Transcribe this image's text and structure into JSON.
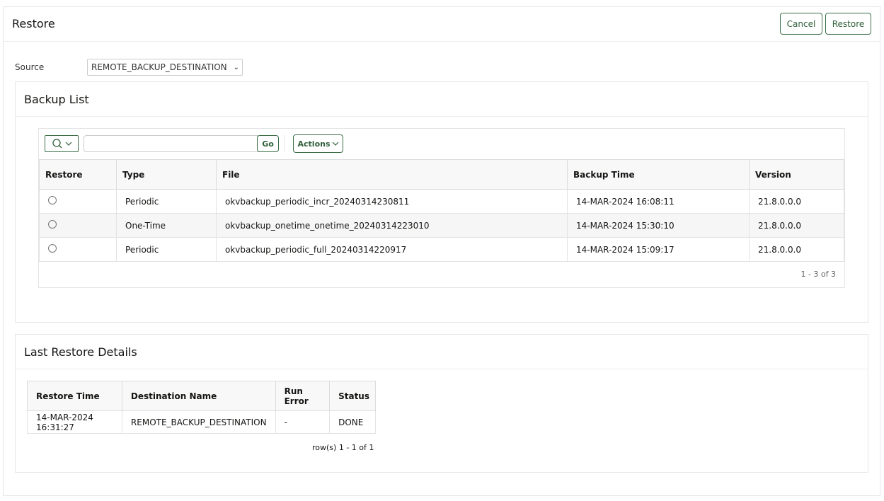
{
  "header": {
    "title": "Restore",
    "cancel_label": "Cancel",
    "restore_label": "Restore"
  },
  "source": {
    "label": "Source",
    "value": "REMOTE_BACKUP_DESTINATION"
  },
  "backup_list": {
    "title": "Backup List",
    "search_value": "",
    "go_label": "Go",
    "actions_label": "Actions",
    "columns": [
      "Restore",
      "Type",
      "File",
      "Backup Time",
      "Version"
    ],
    "rows": [
      {
        "type": "Periodic",
        "file": "okvbackup_periodic_incr_20240314230811",
        "time": "14-MAR-2024 16:08:11",
        "version": "21.8.0.0.0"
      },
      {
        "type": "One-Time",
        "file": "okvbackup_onetime_onetime_20240314223010",
        "time": "14-MAR-2024 15:30:10",
        "version": "21.8.0.0.0"
      },
      {
        "type": "Periodic",
        "file": "okvbackup_periodic_full_20240314220917",
        "time": "14-MAR-2024 15:09:17",
        "version": "21.8.0.0.0"
      }
    ],
    "pagination": "1 - 3 of 3"
  },
  "last_restore": {
    "title": "Last Restore Details",
    "columns": [
      "Restore Time",
      "Destination Name",
      "Run Error",
      "Status"
    ],
    "rows": [
      {
        "time": "14-MAR-2024 16:31:27",
        "destination": "REMOTE_BACKUP_DESTINATION",
        "error": "-",
        "status": "DONE"
      }
    ],
    "pagination": "row(s) 1 - 1 of 1"
  }
}
